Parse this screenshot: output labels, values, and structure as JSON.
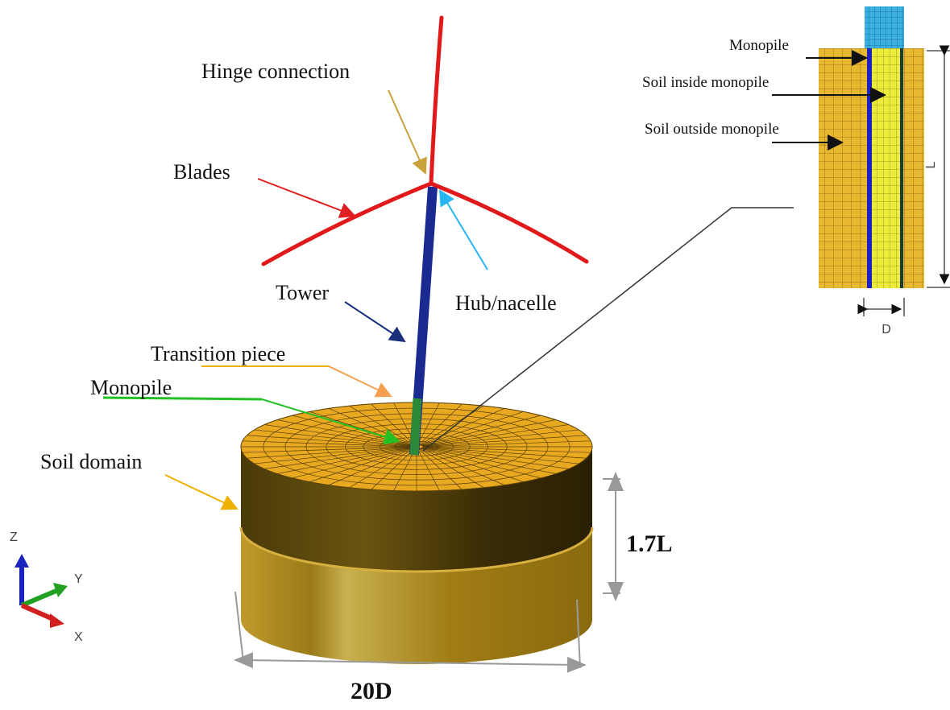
{
  "labels": {
    "hinge_connection": "Hinge connection",
    "blades": "Blades",
    "tower": "Tower",
    "hub_nacelle": "Hub/nacelle",
    "transition_piece": "Transition piece",
    "monopile": "Monopile",
    "soil_domain": "Soil domain"
  },
  "dimensions": {
    "height": "1.7L",
    "width": "20D"
  },
  "inset": {
    "monopile": "Monopile",
    "soil_inside": "Soil inside monopile",
    "soil_outside": "Soil outside monopile",
    "length": "L",
    "diameter": "D"
  },
  "axes": {
    "z": "Z",
    "y": "Y",
    "x": "X"
  }
}
